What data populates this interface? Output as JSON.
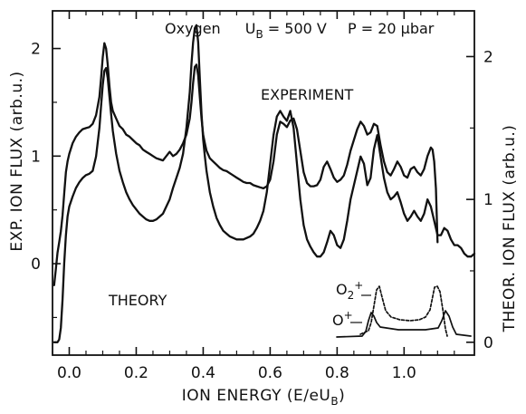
{
  "chart_data": {
    "type": "line",
    "title": "Oxygen  U_B = 500 V  P = 20 µbar",
    "title_parts": {
      "gas": "Oxygen",
      "voltage": "U",
      "voltage_sub": "B",
      "voltage_value": " = 500 V",
      "pressure": "P = 20 µbar"
    },
    "xlabel": "ION ENERGY (E/eU",
    "xlabel_sub": "B",
    "xlabel_end": ")",
    "ylabel_left": "EXP. ION FLUX (arb.u.)",
    "ylabel_right": "THEOR. ION FLUX (arb.u.)",
    "xlim": [
      -0.05,
      1.21
    ],
    "ylim_left": [
      -0.85,
      2.35
    ],
    "ylim_right": [
      -0.09,
      2.32
    ],
    "x_ticks": [
      "0.0",
      "0.2",
      "0.4",
      "0.6",
      "0.8",
      "1.0"
    ],
    "x_tick_values": [
      0.0,
      0.2,
      0.4,
      0.6,
      0.8,
      1.0
    ],
    "y_ticks_left": [
      "0",
      "1",
      "2"
    ],
    "y_tick_values_left": [
      0,
      1,
      2
    ],
    "y_ticks_right": [
      "0",
      "1",
      "2"
    ],
    "y_tick_values_right": [
      0,
      1,
      2
    ],
    "grid": false,
    "series": [
      {
        "name": "EXPERIMENT",
        "axis": "left",
        "x": [
          -0.045,
          -0.04,
          -0.035,
          -0.03,
          -0.025,
          -0.02,
          -0.015,
          -0.01,
          -0.005,
          0.0,
          0.01,
          0.02,
          0.03,
          0.04,
          0.05,
          0.06,
          0.07,
          0.08,
          0.09,
          0.095,
          0.1,
          0.105,
          0.11,
          0.115,
          0.12,
          0.125,
          0.13,
          0.14,
          0.15,
          0.16,
          0.17,
          0.18,
          0.19,
          0.2,
          0.21,
          0.22,
          0.23,
          0.24,
          0.25,
          0.26,
          0.27,
          0.28,
          0.29,
          0.3,
          0.31,
          0.32,
          0.33,
          0.34,
          0.35,
          0.36,
          0.365,
          0.37,
          0.375,
          0.38,
          0.385,
          0.39,
          0.395,
          0.4,
          0.405,
          0.41,
          0.42,
          0.43,
          0.44,
          0.45,
          0.46,
          0.47,
          0.48,
          0.49,
          0.5,
          0.51,
          0.52,
          0.53,
          0.54,
          0.55,
          0.56,
          0.57,
          0.58,
          0.59,
          0.6,
          0.61,
          0.62,
          0.63,
          0.64,
          0.65,
          0.66,
          0.67,
          0.68,
          0.69,
          0.7,
          0.71,
          0.72,
          0.73,
          0.74,
          0.75,
          0.76,
          0.77,
          0.78,
          0.79,
          0.8,
          0.81,
          0.82,
          0.83,
          0.84,
          0.85,
          0.86,
          0.87,
          0.88,
          0.89,
          0.9,
          0.91,
          0.92,
          0.93,
          0.94,
          0.95,
          0.96,
          0.97,
          0.98,
          0.99,
          1.0,
          1.01,
          1.02,
          1.03,
          1.04,
          1.05,
          1.06,
          1.07,
          1.08,
          1.085,
          1.09,
          1.095,
          1.1
        ],
        "y": [
          -0.2,
          -0.05,
          0.1,
          0.2,
          0.3,
          0.45,
          0.65,
          0.85,
          0.95,
          1.02,
          1.12,
          1.18,
          1.22,
          1.25,
          1.26,
          1.27,
          1.3,
          1.38,
          1.55,
          1.72,
          1.92,
          2.05,
          2.0,
          1.85,
          1.65,
          1.5,
          1.42,
          1.35,
          1.28,
          1.25,
          1.2,
          1.18,
          1.15,
          1.12,
          1.1,
          1.06,
          1.04,
          1.02,
          1.0,
          0.98,
          0.97,
          0.96,
          1.0,
          1.04,
          1.0,
          1.02,
          1.06,
          1.12,
          1.2,
          1.35,
          1.5,
          1.68,
          1.83,
          1.85,
          1.75,
          1.55,
          1.35,
          1.2,
          1.12,
          1.05,
          0.98,
          0.95,
          0.92,
          0.89,
          0.87,
          0.86,
          0.84,
          0.82,
          0.8,
          0.78,
          0.76,
          0.75,
          0.75,
          0.73,
          0.72,
          0.71,
          0.7,
          0.72,
          0.78,
          0.95,
          1.2,
          1.32,
          1.3,
          1.27,
          1.33,
          1.35,
          1.25,
          1.05,
          0.85,
          0.75,
          0.72,
          0.72,
          0.73,
          0.78,
          0.9,
          0.95,
          0.88,
          0.8,
          0.76,
          0.78,
          0.82,
          0.92,
          1.05,
          1.15,
          1.25,
          1.32,
          1.28,
          1.2,
          1.22,
          1.3,
          1.28,
          1.1,
          0.95,
          0.85,
          0.82,
          0.88,
          0.95,
          0.9,
          0.82,
          0.8,
          0.88,
          0.9,
          0.85,
          0.82,
          0.88,
          1.0,
          1.08,
          1.06,
          0.95,
          0.7,
          0.2
        ]
      },
      {
        "name": "THEORY",
        "axis": "right",
        "x": [
          -0.045,
          -0.04,
          -0.035,
          -0.03,
          -0.025,
          -0.02,
          -0.015,
          -0.01,
          -0.005,
          0.0,
          0.01,
          0.02,
          0.03,
          0.04,
          0.05,
          0.06,
          0.07,
          0.08,
          0.09,
          0.095,
          0.1,
          0.105,
          0.11,
          0.115,
          0.12,
          0.125,
          0.13,
          0.14,
          0.15,
          0.16,
          0.17,
          0.18,
          0.19,
          0.2,
          0.21,
          0.22,
          0.23,
          0.24,
          0.25,
          0.26,
          0.27,
          0.28,
          0.29,
          0.3,
          0.31,
          0.32,
          0.33,
          0.34,
          0.35,
          0.36,
          0.365,
          0.37,
          0.375,
          0.38,
          0.385,
          0.39,
          0.395,
          0.4,
          0.405,
          0.41,
          0.42,
          0.43,
          0.44,
          0.45,
          0.46,
          0.47,
          0.48,
          0.49,
          0.5,
          0.51,
          0.52,
          0.53,
          0.54,
          0.55,
          0.56,
          0.57,
          0.58,
          0.59,
          0.6,
          0.61,
          0.62,
          0.63,
          0.64,
          0.65,
          0.66,
          0.67,
          0.68,
          0.69,
          0.7,
          0.71,
          0.72,
          0.73,
          0.74,
          0.75,
          0.76,
          0.77,
          0.78,
          0.79,
          0.8,
          0.81,
          0.82,
          0.83,
          0.84,
          0.85,
          0.86,
          0.87,
          0.88,
          0.89,
          0.9,
          0.91,
          0.92,
          0.93,
          0.94,
          0.95,
          0.96,
          0.97,
          0.98,
          0.99,
          1.0,
          1.01,
          1.02,
          1.03,
          1.04,
          1.05,
          1.06,
          1.07,
          1.08,
          1.09,
          1.1,
          1.11,
          1.12,
          1.13,
          1.14,
          1.15,
          1.16,
          1.17,
          1.18,
          1.19,
          1.2,
          1.21
        ],
        "y": [
          0.0,
          0.0,
          0.0,
          0.02,
          0.1,
          0.3,
          0.55,
          0.75,
          0.88,
          0.95,
          1.02,
          1.08,
          1.12,
          1.15,
          1.17,
          1.18,
          1.2,
          1.3,
          1.5,
          1.65,
          1.8,
          1.9,
          1.92,
          1.85,
          1.72,
          1.6,
          1.48,
          1.32,
          1.2,
          1.12,
          1.05,
          1.0,
          0.96,
          0.93,
          0.9,
          0.88,
          0.86,
          0.85,
          0.85,
          0.86,
          0.88,
          0.9,
          0.95,
          1.0,
          1.08,
          1.15,
          1.22,
          1.32,
          1.5,
          1.75,
          1.95,
          2.1,
          2.2,
          2.22,
          2.1,
          1.85,
          1.6,
          1.42,
          1.3,
          1.2,
          1.05,
          0.95,
          0.87,
          0.82,
          0.78,
          0.76,
          0.74,
          0.73,
          0.72,
          0.72,
          0.72,
          0.73,
          0.74,
          0.76,
          0.8,
          0.85,
          0.92,
          1.05,
          1.25,
          1.45,
          1.58,
          1.62,
          1.58,
          1.55,
          1.62,
          1.5,
          1.25,
          1.0,
          0.82,
          0.72,
          0.67,
          0.63,
          0.6,
          0.6,
          0.63,
          0.7,
          0.78,
          0.75,
          0.68,
          0.66,
          0.72,
          0.85,
          1.0,
          1.1,
          1.2,
          1.3,
          1.25,
          1.1,
          1.15,
          1.35,
          1.45,
          1.3,
          1.15,
          1.05,
          1.0,
          1.02,
          1.05,
          0.98,
          0.9,
          0.85,
          0.88,
          0.92,
          0.88,
          0.85,
          0.9,
          1.0,
          0.95,
          0.85,
          0.75,
          0.75,
          0.8,
          0.78,
          0.72,
          0.68,
          0.68,
          0.66,
          0.62,
          0.6,
          0.6,
          0.62
        ]
      }
    ],
    "annotations": [
      {
        "text": "EXPERIMENT"
      },
      {
        "text": "THEORY"
      },
      {
        "text": "O",
        "sub": "2",
        "sup": "+"
      },
      {
        "text": "O",
        "sup": "+"
      }
    ]
  }
}
